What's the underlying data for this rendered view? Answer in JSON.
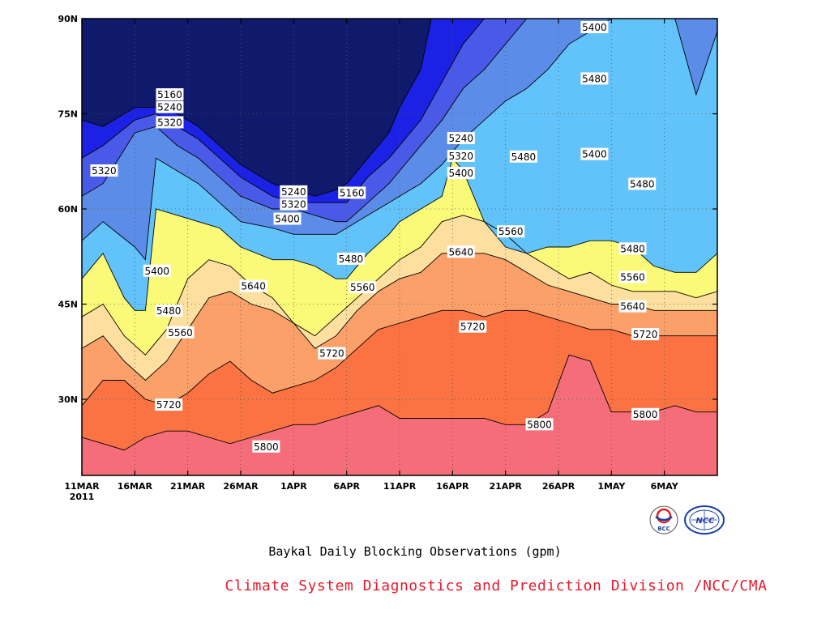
{
  "chart_data": {
    "type": "heatmap",
    "subtype": "filled-contour",
    "title": "Baykal Daily Blocking Observations (gpm)",
    "xlabel": "",
    "ylabel": "",
    "x_ticks": [
      "11MAR",
      "16MAR",
      "21MAR",
      "26MAR",
      "1APR",
      "6APR",
      "11APR",
      "16APR",
      "21APR",
      "26APR",
      "1MAY",
      "6MAY"
    ],
    "x_year_label": "2011",
    "x_range_days": [
      0,
      60
    ],
    "y_ticks": [
      "90N",
      "75N",
      "60N",
      "45N",
      "30N"
    ],
    "y_range": [
      18,
      90
    ],
    "grid": true,
    "contour_levels": [
      5160,
      5240,
      5320,
      5400,
      5480,
      5560,
      5640,
      5720,
      5800
    ],
    "fill_colors": [
      "#0f1a6d",
      "#1b22e6",
      "#4a5ae8",
      "#5b8de8",
      "#62c3fa",
      "#fafa78",
      "#fde09f",
      "#fca06a",
      "#fb7342",
      "#f46d78"
    ],
    "series": [
      {
        "name": "5160",
        "x": [
          0,
          2,
          5,
          7,
          9,
          11,
          13,
          15,
          18,
          20,
          22,
          24,
          25,
          27,
          29,
          30,
          32,
          33,
          34,
          36,
          38,
          40,
          42,
          44,
          46,
          48,
          50,
          52,
          54,
          56,
          58,
          60
        ],
        "y": [
          74,
          73,
          76,
          76,
          75,
          73,
          70,
          67,
          64,
          63,
          62,
          63,
          64,
          68,
          72,
          76,
          82,
          90,
          90,
          90,
          90,
          90,
          90,
          90,
          90,
          90,
          90,
          90,
          90,
          90,
          90,
          90
        ]
      },
      {
        "name": "5240",
        "x": [
          0,
          2,
          5,
          7,
          9,
          11,
          13,
          15,
          18,
          20,
          22,
          24,
          25,
          27,
          29,
          30,
          32,
          34,
          36,
          38,
          40,
          42,
          44,
          46,
          48,
          50,
          52,
          54,
          56,
          58,
          60
        ],
        "y": [
          68,
          70,
          74,
          75,
          73,
          71,
          68,
          65,
          62,
          61,
          61,
          61,
          61,
          65,
          68,
          70,
          74,
          80,
          86,
          90,
          90,
          90,
          90,
          90,
          90,
          90,
          90,
          90,
          90,
          90,
          90
        ]
      },
      {
        "name": "5320",
        "x": [
          0,
          2,
          5,
          7,
          9,
          11,
          13,
          15,
          18,
          20,
          22,
          24,
          25,
          27,
          29,
          30,
          32,
          34,
          36,
          38,
          40,
          42,
          44,
          46,
          48,
          50,
          52,
          54,
          56,
          58,
          60
        ],
        "y": [
          62,
          64,
          72,
          73,
          70,
          68,
          65,
          62,
          60,
          60,
          59,
          58,
          58,
          61,
          64,
          66,
          70,
          74,
          79,
          82,
          86,
          90,
          90,
          90,
          90,
          90,
          90,
          90,
          90,
          90,
          90
        ]
      },
      {
        "name": "5400",
        "x": [
          0,
          2,
          5,
          6,
          7,
          9,
          11,
          13,
          15,
          18,
          20,
          22,
          24,
          25,
          27,
          29,
          30,
          32,
          34,
          36,
          38,
          40,
          42,
          44,
          46,
          48,
          50,
          52,
          54,
          56,
          58,
          60
        ],
        "y": [
          55,
          58,
          54,
          52,
          68,
          66,
          64,
          61,
          58,
          57,
          56,
          56,
          56,
          57,
          59,
          61,
          62,
          64,
          67,
          71,
          74,
          77,
          79,
          82,
          86,
          88,
          90,
          90,
          90,
          90,
          78,
          88
        ]
      },
      {
        "name": "5480",
        "x": [
          0,
          2,
          4,
          5,
          6,
          7,
          9,
          11,
          13,
          15,
          18,
          20,
          22,
          24,
          25,
          27,
          29,
          30,
          32,
          34,
          35,
          36,
          38,
          40,
          42,
          44,
          46,
          48,
          50,
          52,
          54,
          56,
          58,
          60
        ],
        "y": [
          49,
          53,
          46,
          44,
          44,
          60,
          59,
          58,
          57,
          54,
          52,
          52,
          51,
          49,
          49,
          53,
          56,
          58,
          60,
          62,
          68,
          66,
          58,
          54,
          53,
          54,
          54,
          55,
          55,
          54,
          51,
          50,
          50,
          53
        ]
      },
      {
        "name": "5560",
        "x": [
          0,
          2,
          4,
          6,
          8,
          10,
          12,
          14,
          16,
          18,
          20,
          22,
          24,
          26,
          28,
          30,
          32,
          34,
          36,
          38,
          40,
          42,
          44,
          46,
          48,
          50,
          52,
          54,
          56,
          58,
          60
        ],
        "y": [
          43,
          45,
          40,
          37,
          41,
          49,
          52,
          51,
          48,
          46,
          42,
          40,
          43,
          46,
          49,
          52,
          54,
          58,
          59,
          58,
          56,
          53,
          51,
          49,
          50,
          48,
          47,
          47,
          47,
          46,
          47
        ]
      },
      {
        "name": "5640",
        "x": [
          0,
          2,
          4,
          6,
          8,
          10,
          12,
          14,
          16,
          18,
          20,
          22,
          24,
          26,
          28,
          30,
          32,
          34,
          36,
          38,
          40,
          42,
          44,
          46,
          48,
          50,
          52,
          54,
          56,
          58,
          60
        ],
        "y": [
          38,
          40,
          36,
          33,
          36,
          41,
          46,
          47,
          45,
          44,
          42,
          38,
          40,
          44,
          47,
          49,
          50,
          53,
          53,
          53,
          52,
          50,
          48,
          47,
          46,
          45,
          45,
          44,
          44,
          44,
          44
        ]
      },
      {
        "name": "5720",
        "x": [
          0,
          2,
          4,
          6,
          8,
          10,
          12,
          14,
          16,
          18,
          20,
          22,
          24,
          26,
          28,
          30,
          32,
          34,
          36,
          38,
          40,
          42,
          44,
          46,
          48,
          50,
          52,
          54,
          56,
          58,
          60
        ],
        "y": [
          29,
          33,
          33,
          30,
          29,
          31,
          34,
          36,
          33,
          31,
          32,
          33,
          35,
          38,
          41,
          42,
          43,
          44,
          44,
          43,
          44,
          44,
          43,
          42,
          41,
          41,
          40,
          40,
          40,
          40,
          40
        ]
      },
      {
        "name": "5800",
        "x": [
          0,
          2,
          4,
          6,
          8,
          10,
          12,
          14,
          16,
          18,
          20,
          22,
          24,
          26,
          28,
          30,
          32,
          34,
          36,
          38,
          40,
          42,
          44,
          46,
          48,
          50,
          52,
          54,
          56,
          58,
          60
        ],
        "y": [
          24,
          23,
          22,
          24,
          25,
          25,
          24,
          23,
          24,
          25,
          26,
          26,
          27,
          28,
          29,
          27,
          27,
          27,
          27,
          27,
          26,
          26,
          28,
          37,
          36,
          28,
          28,
          28,
          29,
          28,
          28
        ]
      }
    ],
    "contour_labels": [
      {
        "text": "5160",
        "x": 8.3,
        "y": 78
      },
      {
        "text": "5240",
        "x": 8.3,
        "y": 76
      },
      {
        "text": "5320",
        "x": 8.3,
        "y": 73.6
      },
      {
        "text": "5320",
        "x": 2.1,
        "y": 66
      },
      {
        "text": "5240",
        "x": 20,
        "y": 62.7
      },
      {
        "text": "5320",
        "x": 20,
        "y": 60.7
      },
      {
        "text": "5160",
        "x": 25.5,
        "y": 62.5
      },
      {
        "text": "5400",
        "x": 19.4,
        "y": 58.4
      },
      {
        "text": "5240",
        "x": 35.8,
        "y": 71.1
      },
      {
        "text": "5320",
        "x": 35.8,
        "y": 68.3
      },
      {
        "text": "5400",
        "x": 35.8,
        "y": 65.6
      },
      {
        "text": "5400",
        "x": 7.1,
        "y": 50.2
      },
      {
        "text": "5480",
        "x": 8.2,
        "y": 43.9
      },
      {
        "text": "5560",
        "x": 9.3,
        "y": 40.5
      },
      {
        "text": "5640",
        "x": 16.2,
        "y": 47.8
      },
      {
        "text": "5480",
        "x": 25.4,
        "y": 52.1
      },
      {
        "text": "5560",
        "x": 26.5,
        "y": 47.6
      },
      {
        "text": "5720",
        "x": 23.6,
        "y": 37.2
      },
      {
        "text": "5720",
        "x": 8.2,
        "y": 29.1
      },
      {
        "text": "5800",
        "x": 17.4,
        "y": 22.5
      },
      {
        "text": "5640",
        "x": 35.8,
        "y": 53.2
      },
      {
        "text": "5720",
        "x": 36.9,
        "y": 41.4
      },
      {
        "text": "5560",
        "x": 40.5,
        "y": 56.4
      },
      {
        "text": "5480",
        "x": 41.7,
        "y": 68.2
      },
      {
        "text": "5800",
        "x": 43.2,
        "y": 26
      },
      {
        "text": "5400",
        "x": 48.4,
        "y": 88.6
      },
      {
        "text": "5480",
        "x": 48.4,
        "y": 80.5
      },
      {
        "text": "5400",
        "x": 48.4,
        "y": 68.6
      },
      {
        "text": "5480",
        "x": 52.9,
        "y": 63.9
      },
      {
        "text": "5480",
        "x": 52,
        "y": 53.7
      },
      {
        "text": "5560",
        "x": 52,
        "y": 49.2
      },
      {
        "text": "5640",
        "x": 52,
        "y": 44.6
      },
      {
        "text": "5720",
        "x": 53.2,
        "y": 40.2
      },
      {
        "text": "5800",
        "x": 53.2,
        "y": 27.6
      }
    ]
  },
  "footer": {
    "caption": "Baykal Daily Blocking Observations (gpm)",
    "credit": "Climate System Diagnostics and Prediction Division /NCC/CMA",
    "logos": [
      {
        "name": "bcc-logo",
        "text": "BCC"
      },
      {
        "name": "ncc-logo",
        "text": "NCC"
      }
    ]
  }
}
